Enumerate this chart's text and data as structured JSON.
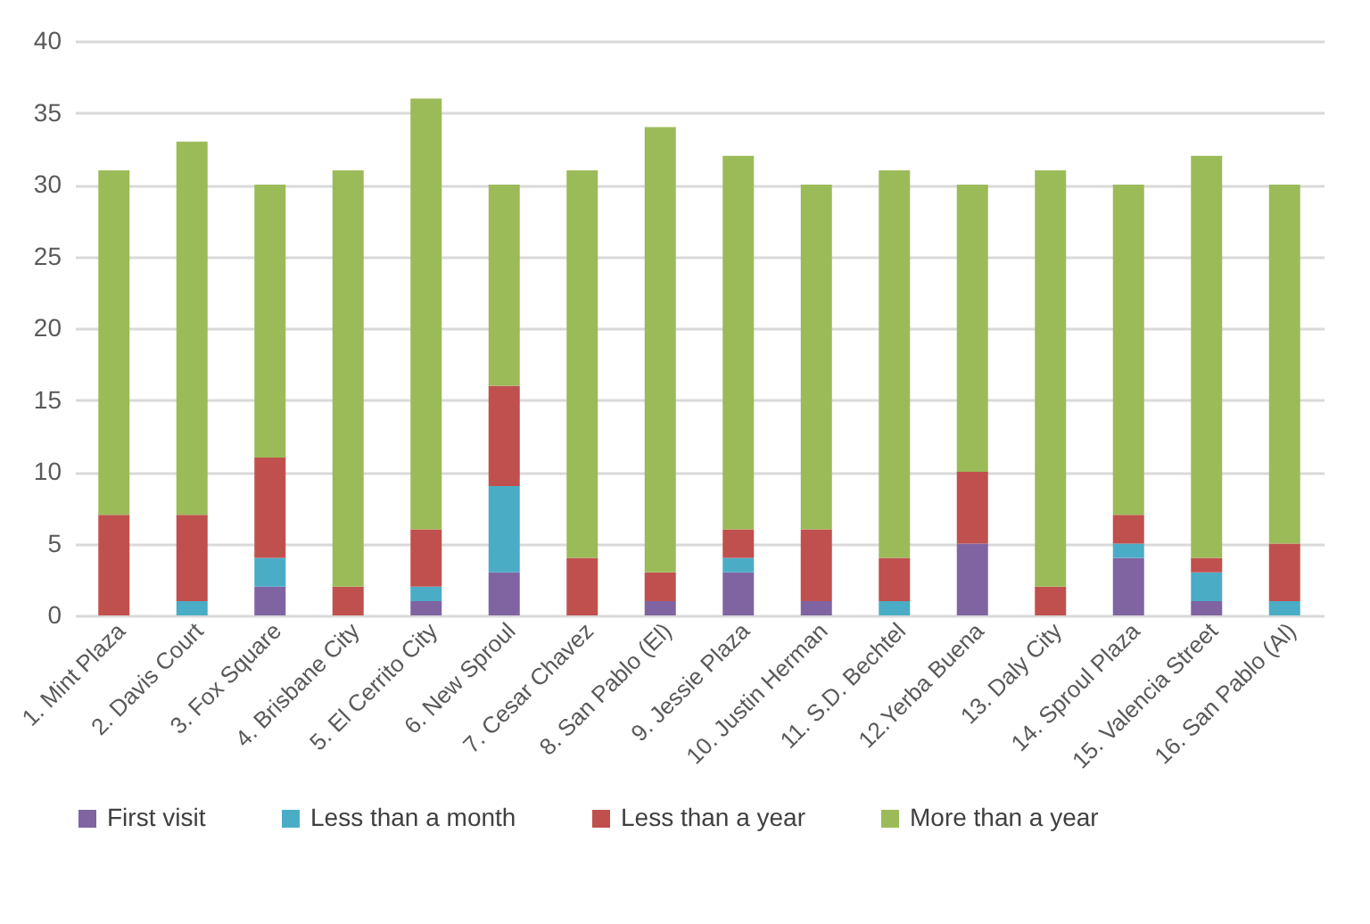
{
  "chart_data": {
    "type": "bar",
    "stacked": true,
    "categories": [
      "1. Mint Plaza",
      "2. Davis Court",
      "3. Fox Square",
      "4. Brisbane City",
      "5. El Cerrito City",
      "6. New Sproul",
      "7. Cesar Chavez",
      "8. San Pablo (El)",
      "9. Jessie Plaza",
      "10. Justin Herman",
      "11. S.D. Bechtel",
      "12.Yerba Buena",
      "13. Daly City",
      "14. Sproul Plaza",
      "15. Valencia Street",
      "16. San Pablo (Al)"
    ],
    "series": [
      {
        "name": "First visit",
        "color": "#8064a2",
        "values": [
          0,
          0,
          2,
          0,
          1,
          3,
          0,
          1,
          3,
          1,
          0,
          5,
          0,
          4,
          1,
          0
        ]
      },
      {
        "name": "Less than a month",
        "color": "#4bacc6",
        "values": [
          0,
          1,
          2,
          0,
          1,
          6,
          0,
          0,
          1,
          0,
          1,
          0,
          0,
          1,
          2,
          1
        ]
      },
      {
        "name": "Less than a year",
        "color": "#c0504d",
        "values": [
          7,
          6,
          7,
          2,
          4,
          7,
          4,
          2,
          2,
          5,
          3,
          5,
          2,
          2,
          1,
          4
        ]
      },
      {
        "name": "More than a year",
        "color": "#9bbb59",
        "values": [
          24,
          26,
          19,
          29,
          30,
          14,
          27,
          31,
          26,
          24,
          27,
          20,
          29,
          23,
          28,
          25
        ]
      }
    ],
    "ylim": [
      0,
      40
    ],
    "yticks": [
      0,
      5,
      10,
      15,
      20,
      25,
      30,
      35,
      40
    ],
    "grid": "y",
    "legend": "bottom"
  }
}
